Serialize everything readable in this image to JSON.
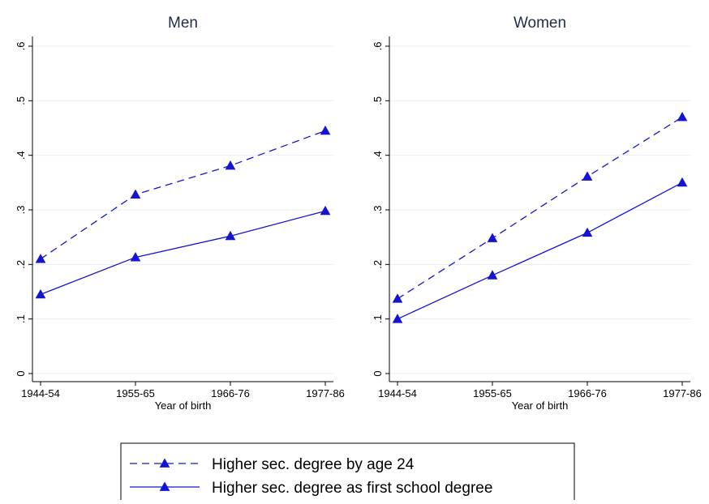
{
  "figure": {
    "legend": {
      "placement": "bottom-center",
      "entries": [
        {
          "label": "Higher sec. degree by age 24",
          "line": "dashed",
          "marker": "triangle"
        },
        {
          "label": "Higher sec. degree as first school degree",
          "line": "solid",
          "marker": "triangle"
        }
      ]
    },
    "colors": {
      "series": "#1414d2",
      "grid": "#e8eef3"
    }
  },
  "chart_data": [
    {
      "type": "line",
      "title": "Men",
      "xlabel": "Year of birth",
      "ylabel": "",
      "categories": [
        "1944-54",
        "1955-65",
        "1966-76",
        "1977-86"
      ],
      "ylim": [
        0,
        0.6
      ],
      "yticks": [
        "0",
        ".1",
        ".2",
        ".3",
        ".4",
        ".5",
        ".6"
      ],
      "grid": true,
      "series": [
        {
          "name": "Higher sec. degree by age 24",
          "values": [
            0.21,
            0.328,
            0.381,
            0.445
          ]
        },
        {
          "name": "Higher sec. degree as first school degree",
          "values": [
            0.145,
            0.213,
            0.252,
            0.298
          ]
        }
      ]
    },
    {
      "type": "line",
      "title": "Women",
      "xlabel": "Year of birth",
      "ylabel": "",
      "categories": [
        "1944-54",
        "1955-65",
        "1966-76",
        "1977-86"
      ],
      "ylim": [
        0,
        0.6
      ],
      "yticks": [
        "0",
        ".1",
        ".2",
        ".3",
        ".4",
        ".5",
        ".6"
      ],
      "grid": true,
      "series": [
        {
          "name": "Higher sec. degree by age 24",
          "values": [
            0.137,
            0.248,
            0.361,
            0.47
          ]
        },
        {
          "name": "Higher sec. degree as first school degree",
          "values": [
            0.1,
            0.18,
            0.258,
            0.35
          ]
        }
      ]
    }
  ]
}
